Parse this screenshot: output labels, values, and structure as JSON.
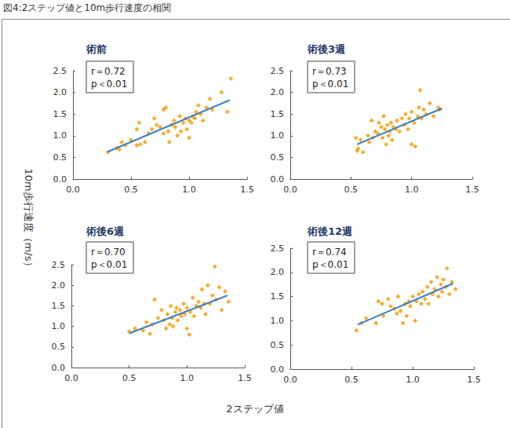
{
  "title": "図4:2ステップ値と10m歩行速度の相関",
  "x_label": "2ステップ値",
  "y_label": "10m歩行速度（m/s）",
  "chart_data": [
    {
      "type": "scatter",
      "title": "術前",
      "annotation": [
        "r＝0.72",
        "p＜0.01"
      ],
      "xlim": [
        0,
        1.5
      ],
      "xticks": [
        {
          "value": 0,
          "label": "0.0"
        },
        {
          "value": 0.5,
          "label": "0.5"
        },
        {
          "value": 1,
          "label": "1.0"
        },
        {
          "value": 1.5,
          "label": "1.5"
        }
      ],
      "ylim": [
        0,
        2.5
      ],
      "yticks": [
        {
          "value": 0,
          "label": "0.0"
        },
        {
          "value": 0.5,
          "label": "0.5"
        },
        {
          "value": 1,
          "label": "1.0"
        },
        {
          "value": 1.5,
          "label": "1.5"
        },
        {
          "value": 2,
          "label": "2.0"
        },
        {
          "value": 2.5,
          "label": "2.5"
        }
      ],
      "grid": false,
      "series": [
        {
          "type": "scatter",
          "marker": "diamond",
          "color": "#f39800",
          "x": [
            0.3,
            0.38,
            0.4,
            0.42,
            0.45,
            0.5,
            0.55,
            0.55,
            0.57,
            0.58,
            0.62,
            0.65,
            0.68,
            0.7,
            0.72,
            0.75,
            0.78,
            0.78,
            0.8,
            0.82,
            0.83,
            0.85,
            0.87,
            0.88,
            0.9,
            0.92,
            0.93,
            0.95,
            0.97,
            0.98,
            1.0,
            1.0,
            1.02,
            1.03,
            1.05,
            1.06,
            1.08,
            1.1,
            1.12,
            1.15,
            1.18,
            1.2,
            1.28,
            1.33,
            1.36
          ],
          "values": [
            0.62,
            0.72,
            0.68,
            0.85,
            0.78,
            0.9,
            1.15,
            0.78,
            1.3,
            0.8,
            0.85,
            1.05,
            1.15,
            1.4,
            1.25,
            1.2,
            1.6,
            1.05,
            1.65,
            1.1,
            0.85,
            1.25,
            1.35,
            1.2,
            1.0,
            1.45,
            1.1,
            1.3,
            1.4,
            1.15,
            1.35,
            0.95,
            1.3,
            1.45,
            1.4,
            1.55,
            1.7,
            1.5,
            1.35,
            1.65,
            1.85,
            1.6,
            2.0,
            1.55,
            2.32
          ]
        },
        {
          "type": "line",
          "color": "#3a7fc1",
          "x": [
            0.3,
            1.35
          ],
          "values": [
            0.63,
            1.82
          ]
        }
      ]
    },
    {
      "type": "scatter",
      "title": "術後3週",
      "annotation": [
        "r＝0.73",
        "p＜0.01"
      ],
      "xlim": [
        0,
        1.5
      ],
      "xticks": [
        {
          "value": 0,
          "label": "0.0"
        },
        {
          "value": 0.5,
          "label": "0.5"
        },
        {
          "value": 1,
          "label": "1.0"
        },
        {
          "value": 1.5,
          "label": "1.5"
        }
      ],
      "ylim": [
        0,
        2.5
      ],
      "yticks": [
        {
          "value": 0,
          "label": "0.0"
        },
        {
          "value": 0.5,
          "label": "0.5"
        },
        {
          "value": 1,
          "label": "1.0"
        },
        {
          "value": 1.5,
          "label": "1.5"
        },
        {
          "value": 2,
          "label": "2.0"
        },
        {
          "value": 2.5,
          "label": "2.5"
        }
      ],
      "grid": false,
      "series": [
        {
          "type": "scatter",
          "marker": "diamond",
          "color": "#f39800",
          "x": [
            0.54,
            0.55,
            0.56,
            0.58,
            0.6,
            0.64,
            0.65,
            0.67,
            0.68,
            0.7,
            0.72,
            0.73,
            0.75,
            0.76,
            0.77,
            0.78,
            0.79,
            0.8,
            0.81,
            0.82,
            0.83,
            0.84,
            0.85,
            0.87,
            0.88,
            0.9,
            0.92,
            0.94,
            0.95,
            0.97,
            0.98,
            1.0,
            1.0,
            1.02,
            1.03,
            1.05,
            1.06,
            1.07,
            1.08,
            1.1,
            1.12,
            1.15,
            1.18,
            1.22,
            1.23
          ],
          "values": [
            0.95,
            0.65,
            0.7,
            0.9,
            0.62,
            1.0,
            0.85,
            1.35,
            0.95,
            1.1,
            1.05,
            1.3,
            1.2,
            0.95,
            1.45,
            1.15,
            0.8,
            1.25,
            1.0,
            1.1,
            1.3,
            0.9,
            1.2,
            1.15,
            1.35,
            1.1,
            1.4,
            1.25,
            1.5,
            1.15,
            1.4,
            0.8,
            1.55,
            1.3,
            0.75,
            1.45,
            1.65,
            2.05,
            1.4,
            1.6,
            1.5,
            1.75,
            1.45,
            1.65,
            1.6
          ]
        },
        {
          "type": "line",
          "color": "#3a7fc1",
          "x": [
            0.55,
            1.25
          ],
          "values": [
            0.8,
            1.63
          ]
        }
      ]
    },
    {
      "type": "scatter",
      "title": "術後6週",
      "annotation": [
        "r＝0.70",
        "p＜0.01"
      ],
      "xlim": [
        0,
        1.5
      ],
      "xticks": [
        {
          "value": 0,
          "label": "0.0"
        },
        {
          "value": 0.5,
          "label": "0.5"
        },
        {
          "value": 1,
          "label": "1.0"
        },
        {
          "value": 1.5,
          "label": "1.5"
        }
      ],
      "ylim": [
        0,
        2.5
      ],
      "yticks": [
        {
          "value": 0,
          "label": "0.0"
        },
        {
          "value": 0.5,
          "label": "0.5"
        },
        {
          "value": 1,
          "label": "1.0"
        },
        {
          "value": 1.5,
          "label": "1.5"
        },
        {
          "value": 2,
          "label": "2.0"
        },
        {
          "value": 2.5,
          "label": "2.5"
        }
      ],
      "grid": false,
      "series": [
        {
          "type": "scatter",
          "marker": "diamond",
          "color": "#f39800",
          "x": [
            0.5,
            0.55,
            0.62,
            0.65,
            0.68,
            0.7,
            0.72,
            0.75,
            0.78,
            0.8,
            0.82,
            0.83,
            0.85,
            0.86,
            0.87,
            0.88,
            0.9,
            0.91,
            0.92,
            0.94,
            0.95,
            0.97,
            0.98,
            1.0,
            1.0,
            1.02,
            1.03,
            1.05,
            1.06,
            1.08,
            1.1,
            1.12,
            1.13,
            1.15,
            1.16,
            1.18,
            1.2,
            1.22,
            1.24,
            1.25,
            1.28,
            1.3,
            1.33,
            1.36
          ],
          "values": [
            0.88,
            0.95,
            0.9,
            1.1,
            0.82,
            1.05,
            1.65,
            1.2,
            1.4,
            1.15,
            0.95,
            1.3,
            1.05,
            1.5,
            1.2,
            1.0,
            1.35,
            1.45,
            1.15,
            1.4,
            1.25,
            1.55,
            1.3,
            0.95,
            1.45,
            0.8,
            1.35,
            1.7,
            1.25,
            1.5,
            1.6,
            1.45,
            1.9,
            1.55,
            1.3,
            2.0,
            1.55,
            1.75,
            2.45,
            1.65,
            1.95,
            1.4,
            1.85,
            1.6
          ]
        },
        {
          "type": "line",
          "color": "#3a7fc1",
          "x": [
            0.5,
            1.35
          ],
          "values": [
            0.83,
            1.75
          ]
        }
      ]
    },
    {
      "type": "scatter",
      "title": "術後12週",
      "annotation": [
        "r＝0.74",
        "p＜0.01"
      ],
      "xlim": [
        0,
        1.5
      ],
      "xticks": [
        {
          "value": 0,
          "label": "0.0"
        },
        {
          "value": 0.5,
          "label": "0.5"
        },
        {
          "value": 1,
          "label": "1.0"
        },
        {
          "value": 1.5,
          "label": "1.5"
        }
      ],
      "ylim": [
        0,
        2.5
      ],
      "yticks": [
        {
          "value": 0,
          "label": "0.0"
        },
        {
          "value": 0.5,
          "label": "0.5"
        },
        {
          "value": 1,
          "label": "1.0"
        },
        {
          "value": 1.5,
          "label": "1.5"
        },
        {
          "value": 2,
          "label": "2.0"
        },
        {
          "value": 2.5,
          "label": "2.5"
        }
      ],
      "grid": false,
      "series": [
        {
          "type": "scatter",
          "marker": "diamond",
          "color": "#f39800",
          "x": [
            0.54,
            0.58,
            0.62,
            0.7,
            0.72,
            0.75,
            0.76,
            0.8,
            0.82,
            0.85,
            0.87,
            0.88,
            0.9,
            0.92,
            0.94,
            0.95,
            0.97,
            0.98,
            1.0,
            1.02,
            1.03,
            1.05,
            1.07,
            1.08,
            1.1,
            1.12,
            1.13,
            1.15,
            1.16,
            1.18,
            1.2,
            1.21,
            1.23,
            1.24,
            1.25,
            1.27,
            1.28,
            1.3,
            1.32,
            1.35
          ],
          "values": [
            0.8,
            0.95,
            1.05,
            0.95,
            1.4,
            1.35,
            1.1,
            1.45,
            1.3,
            1.25,
            1.15,
            1.5,
            1.2,
            0.95,
            1.35,
            1.1,
            1.4,
            1.3,
            1.5,
            1.0,
            1.4,
            1.55,
            1.35,
            1.6,
            1.45,
            1.7,
            1.35,
            1.8,
            1.55,
            1.65,
            1.9,
            1.5,
            1.75,
            1.6,
            1.85,
            1.7,
            2.08,
            1.55,
            1.8,
            1.65
          ]
        },
        {
          "type": "line",
          "color": "#3a7fc1",
          "x": [
            0.55,
            1.33
          ],
          "values": [
            0.92,
            1.77
          ]
        }
      ]
    }
  ]
}
